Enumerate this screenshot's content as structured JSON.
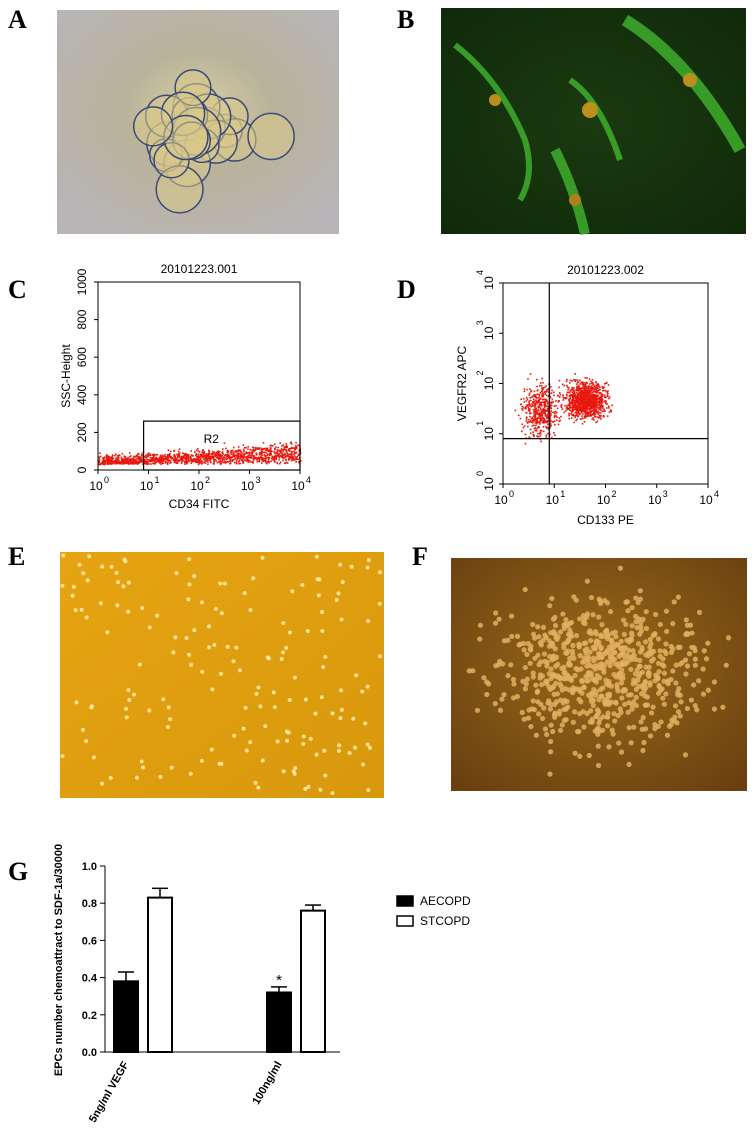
{
  "panels": {
    "labels": [
      "A",
      "B",
      "C",
      "D",
      "E",
      "F",
      "G"
    ],
    "flow_c": {
      "type": "scatter",
      "title": "20101223.001",
      "x_label": "CD34 FITC",
      "y_label": "SSC-Height",
      "xlim": [
        1,
        10000
      ],
      "ylim": [
        0,
        1000
      ],
      "log_x": true,
      "xticks": [
        {
          "value": 1,
          "label": "10",
          "sup": "0"
        },
        {
          "value": 10,
          "label": "10",
          "sup": "1"
        },
        {
          "value": 100,
          "label": "10",
          "sup": "2"
        },
        {
          "value": 1000,
          "label": "10",
          "sup": "3"
        },
        {
          "value": 10000,
          "label": "10",
          "sup": "4"
        }
      ],
      "yticks": [
        0,
        200,
        400,
        600,
        800,
        1000
      ],
      "gate": {
        "label": "R2",
        "x": [
          8,
          10000
        ],
        "y": [
          0,
          260
        ]
      },
      "color": "#e8190f"
    },
    "flow_d": {
      "type": "scatter",
      "title": "20101223.002",
      "x_label": "CD133 PE",
      "y_label": "VEGFR2 APC",
      "xlim": [
        1,
        10000
      ],
      "ylim": [
        1,
        10000
      ],
      "log_x": true,
      "log_y": true,
      "xticks": [
        {
          "value": 1,
          "label": "10",
          "sup": "0"
        },
        {
          "value": 10,
          "label": "10",
          "sup": "1"
        },
        {
          "value": 100,
          "label": "10",
          "sup": "2"
        },
        {
          "value": 1000,
          "label": "10",
          "sup": "3"
        },
        {
          "value": 10000,
          "label": "10",
          "sup": "4"
        }
      ],
      "yticks": [
        {
          "value": 1,
          "label": "10",
          "sup": "0"
        },
        {
          "value": 10,
          "label": "10",
          "sup": "1"
        },
        {
          "value": 100,
          "label": "10",
          "sup": "2"
        },
        {
          "value": 1000,
          "label": "10",
          "sup": "3"
        },
        {
          "value": 10000,
          "label": "10",
          "sup": "4"
        }
      ],
      "quadrant": {
        "x": 8,
        "y": 8
      },
      "color": "#e8190f"
    }
  },
  "chart_data": {
    "type": "bar",
    "y_label": "EPCs number chemoattract to SDF-1a/30000",
    "categories": [
      "5ng/ml VEGF",
      "100ng/ml"
    ],
    "series": [
      {
        "name": "AECOPD",
        "color": "#000000",
        "values": [
          0.38,
          0.32
        ],
        "errors": [
          0.05,
          0.03
        ]
      },
      {
        "name": "STCOPD",
        "color": "#ffffff",
        "values": [
          0.83,
          0.76
        ],
        "errors": [
          0.05,
          0.03
        ]
      }
    ],
    "ylim": [
      0,
      1
    ],
    "yticks": [
      {
        "value": 0,
        "label": "0.0"
      },
      {
        "value": 0.2,
        "label": "0.2"
      },
      {
        "value": 0.4,
        "label": "0.4"
      },
      {
        "value": 0.6,
        "label": "0.6"
      },
      {
        "value": 0.8,
        "label": "0.8"
      },
      {
        "value": 1,
        "label": "1.0"
      }
    ],
    "annotations": [
      {
        "text": "*",
        "series": 0,
        "category": 1
      }
    ],
    "legend": "right"
  }
}
